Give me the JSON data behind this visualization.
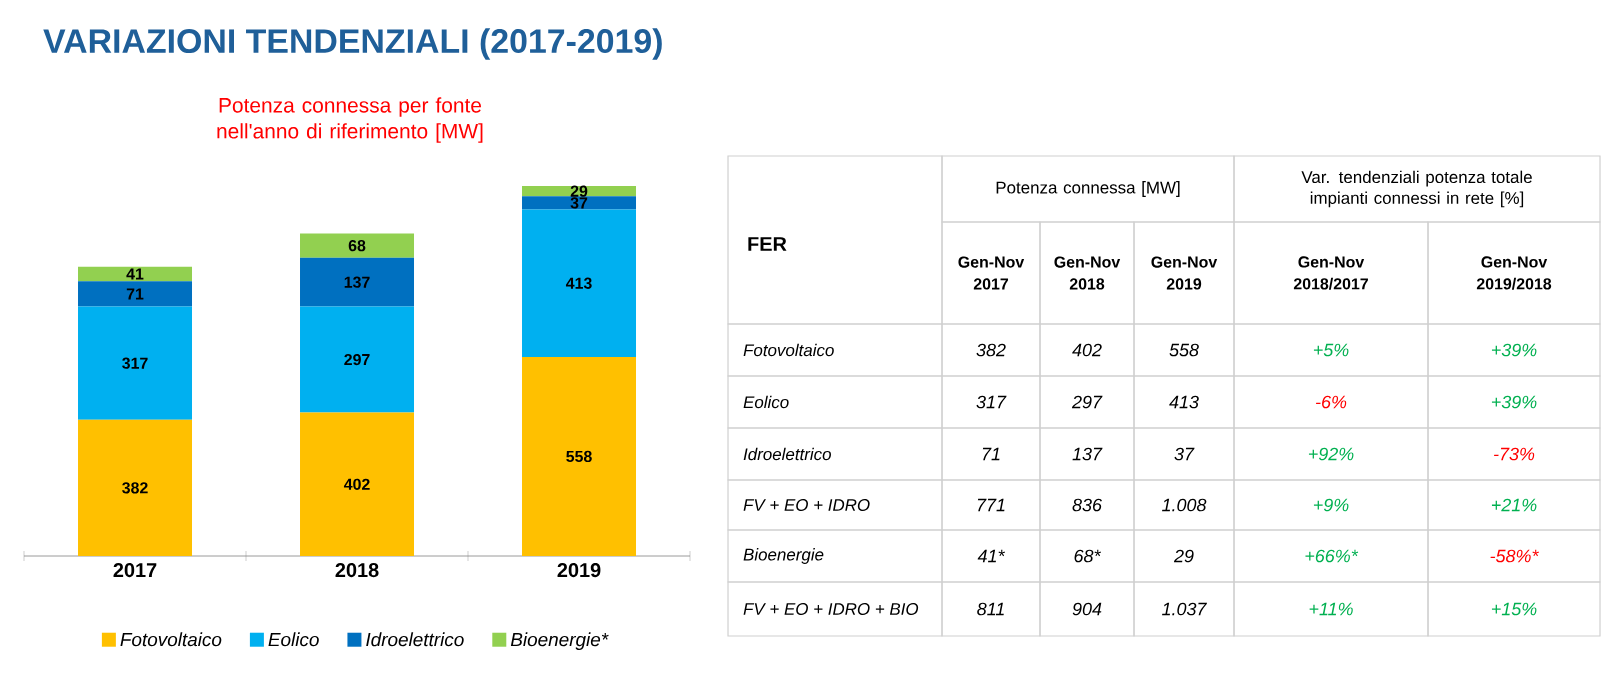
{
  "chart_data": [
    {
      "type": "bar",
      "title": "VARIAZIONI TENDENZIALI (2017-2019)",
      "subtitle": "Potenza connessa per fonte nell'anno di riferimento [MW]",
      "stacked": true,
      "data_labels": true,
      "legend": "bottom",
      "categories": [
        "2017",
        "2018",
        "2019"
      ],
      "series": [
        {
          "name": "Fotovoltaico",
          "color": "#ffc000",
          "values": [
            382,
            402,
            558
          ]
        },
        {
          "name": "Eolico",
          "color": "#00b0f0",
          "values": [
            317,
            297,
            413
          ]
        },
        {
          "name": "Idroelettrico",
          "color": "#0070c0",
          "values": [
            71,
            137,
            37
          ]
        },
        {
          "name": "Bioenergie*",
          "color": "#92d050",
          "values": [
            41,
            68,
            29
          ]
        }
      ]
    },
    {
      "type": "heatmap",
      "ylabel": "FER",
      "annotations": [
        "Potenza connessa [MW]",
        "Var. tendenziali potenza totale impianti connessi in rete [%]"
      ],
      "categories": [
        "Gen-Nov 2017",
        "Gen-Nov 2018",
        "Gen-Nov 2019",
        "Gen-Nov 2018/2017",
        "Gen-Nov 2019/2018"
      ],
      "y_categories": [
        "Fotovoltaico",
        "Eolico",
        "Idroelettrico",
        "FV + EO + IDRO",
        "Bioenergie",
        "FV + EO + IDRO + BIO"
      ],
      "cells": [
        [
          null,
          null,
          null,
          null,
          null
        ],
        [
          null,
          null,
          null,
          null,
          null
        ],
        [
          null,
          null,
          null,
          null,
          null
        ],
        [
          null,
          null,
          null,
          null,
          null
        ],
        [
          null,
          null,
          null,
          null,
          null
        ],
        [
          null,
          null,
          null,
          null,
          null
        ]
      ],
      "cell_labels": [
        [
          "382",
          "402",
          "558",
          "+5%",
          "+39%"
        ],
        [
          "317",
          "297",
          "413",
          "-6%",
          "+39%"
        ],
        [
          "71",
          "137",
          "37",
          "+92%",
          "-73%"
        ],
        [
          "771",
          "836",
          "1.008",
          "+9%",
          "+21%"
        ],
        [
          "41*",
          "68*",
          "29",
          "+66%*",
          "-58%*"
        ],
        [
          "811",
          "904",
          "1.037",
          "+11%",
          "+15%"
        ]
      ]
    }
  ]
}
